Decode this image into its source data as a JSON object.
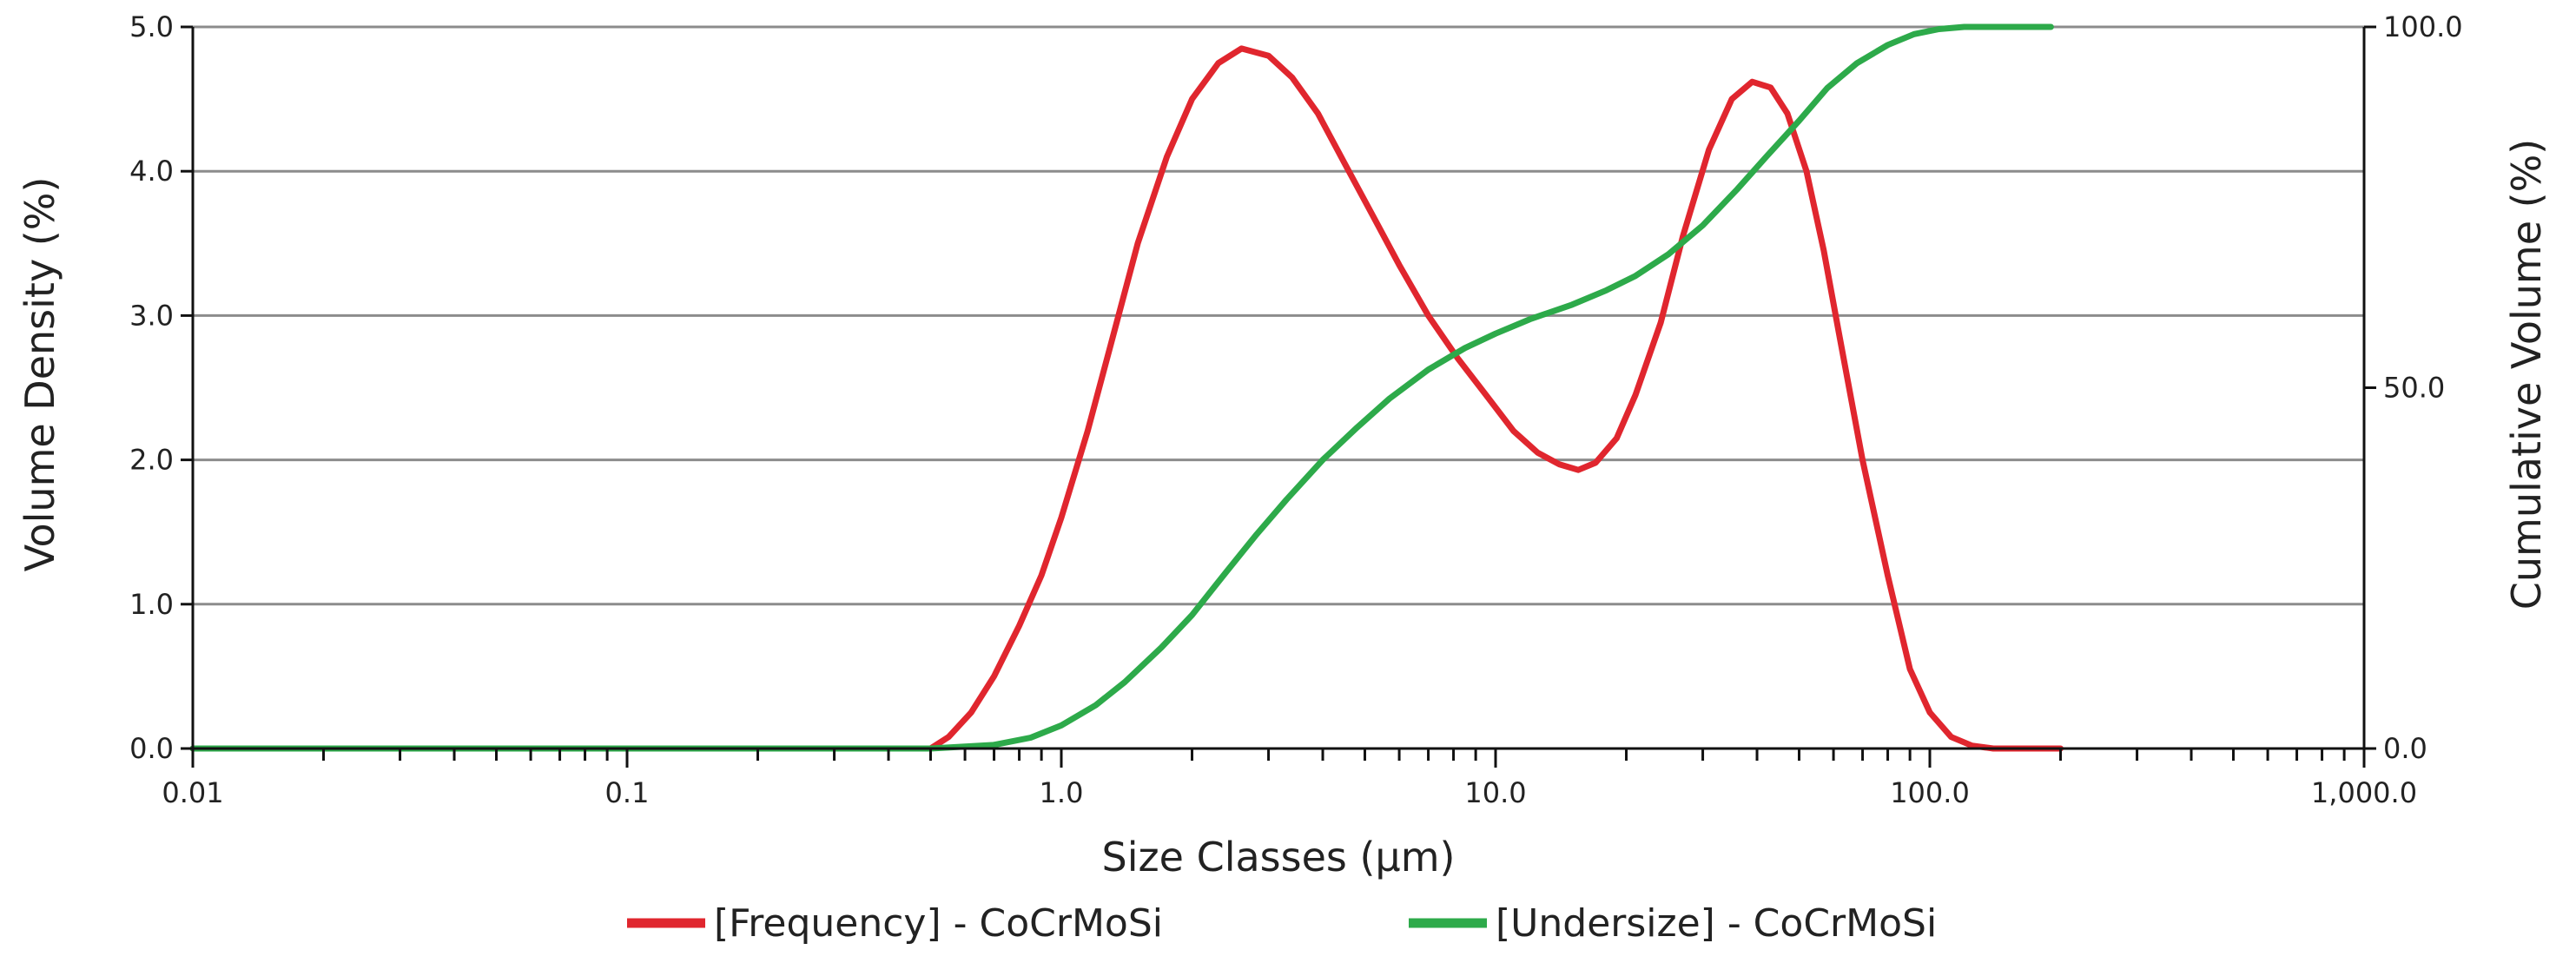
{
  "chart_data": {
    "type": "line",
    "x_scale": "log",
    "xlim": [
      0.01,
      1000
    ],
    "ylim_left": [
      0,
      5
    ],
    "ylim_right": [
      0,
      100
    ],
    "xlabel": "Size Classes (μm)",
    "ylabel_left": "Volume Density (%)",
    "ylabel_right": "Cumulative Volume (%)",
    "x_ticks": [
      {
        "value": 0.01,
        "label": "0.01"
      },
      {
        "value": 0.1,
        "label": "0.1"
      },
      {
        "value": 1,
        "label": "1.0"
      },
      {
        "value": 10,
        "label": "10.0"
      },
      {
        "value": 100,
        "label": "100.0"
      },
      {
        "value": 1000,
        "label": "1,000.0"
      }
    ],
    "y_left_ticks": [
      {
        "value": 0,
        "label": "0.0"
      },
      {
        "value": 1,
        "label": "1.0"
      },
      {
        "value": 2,
        "label": "2.0"
      },
      {
        "value": 3,
        "label": "3.0"
      },
      {
        "value": 4,
        "label": "4.0"
      },
      {
        "value": 5,
        "label": "5.0"
      }
    ],
    "y_right_ticks": [
      {
        "value": 0,
        "label": "0.0"
      },
      {
        "value": 50,
        "label": "50.0"
      },
      {
        "value": 100,
        "label": "100.0"
      }
    ],
    "grid": "horizontal",
    "legend_position": "bottom",
    "series": [
      {
        "name": "[Frequency] - CoCrMoSi",
        "axis": "left",
        "color": "#e0262e",
        "x": [
          0.01,
          0.1,
          0.5,
          0.55,
          0.62,
          0.7,
          0.8,
          0.9,
          1.0,
          1.15,
          1.3,
          1.5,
          1.75,
          2.0,
          2.3,
          2.6,
          3.0,
          3.4,
          3.9,
          4.5,
          5.2,
          6.0,
          7.0,
          8.2,
          9.5,
          11.0,
          12.5,
          14.0,
          15.5,
          17.0,
          19.0,
          21.0,
          24.0,
          27.0,
          31.0,
          35.0,
          39.0,
          43.0,
          47.0,
          52.0,
          57.0,
          62.0,
          70.0,
          80.0,
          90.0,
          100.0,
          112.0,
          125.0,
          140.0,
          160.0,
          200.0
        ],
        "values": [
          0.0,
          0.0,
          0.0,
          0.08,
          0.25,
          0.5,
          0.85,
          1.2,
          1.6,
          2.2,
          2.8,
          3.5,
          4.1,
          4.5,
          4.75,
          4.85,
          4.8,
          4.65,
          4.4,
          4.05,
          3.7,
          3.35,
          3.0,
          2.7,
          2.45,
          2.2,
          2.05,
          1.97,
          1.93,
          1.98,
          2.15,
          2.45,
          2.95,
          3.55,
          4.15,
          4.5,
          4.62,
          4.58,
          4.4,
          4.0,
          3.45,
          2.85,
          2.0,
          1.2,
          0.55,
          0.25,
          0.08,
          0.02,
          0.0,
          0.0,
          0.0
        ]
      },
      {
        "name": "[Undersize] - CoCrMoSi",
        "axis": "right",
        "color": "#2daa4a",
        "x": [
          0.01,
          0.1,
          0.5,
          0.7,
          0.85,
          1.0,
          1.2,
          1.4,
          1.7,
          2.0,
          2.4,
          2.8,
          3.3,
          4.0,
          4.8,
          5.7,
          7.0,
          8.5,
          10.0,
          12.0,
          15.0,
          18.0,
          21.0,
          25.0,
          30.0,
          36.0,
          42.0,
          50.0,
          58.0,
          68.0,
          80.0,
          92.0,
          105.0,
          120.0,
          140.0,
          160.0,
          190.0
        ],
        "values": [
          0.0,
          0.0,
          0.0,
          0.5,
          1.5,
          3.2,
          6.0,
          9.2,
          14.0,
          18.5,
          24.5,
          29.5,
          34.5,
          40.0,
          44.5,
          48.5,
          52.5,
          55.5,
          57.5,
          59.5,
          61.5,
          63.5,
          65.5,
          68.5,
          72.5,
          77.5,
          82.0,
          87.0,
          91.5,
          95.0,
          97.5,
          99.0,
          99.7,
          100.0,
          100.0,
          100.0,
          100.0
        ]
      }
    ]
  }
}
